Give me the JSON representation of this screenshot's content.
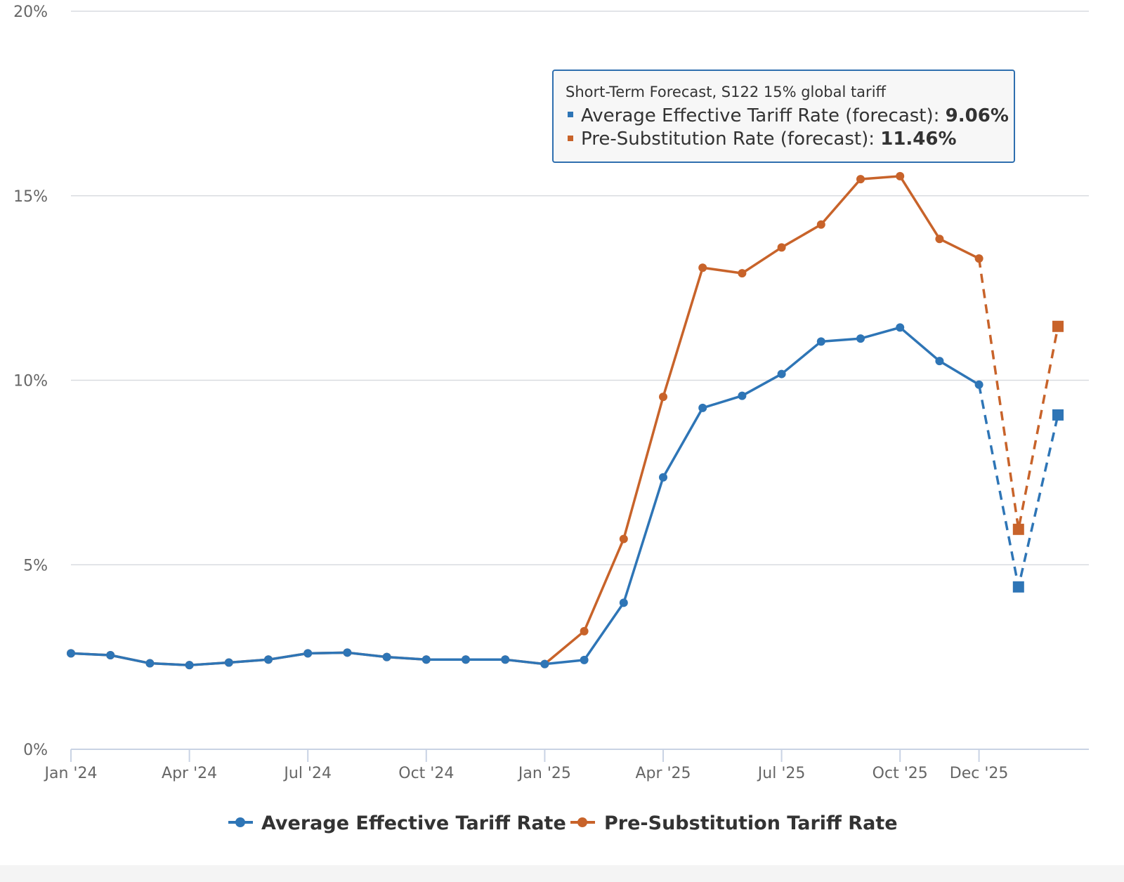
{
  "chart_data": {
    "type": "line",
    "title": "",
    "xlabel": "",
    "ylabel": "",
    "ylim": [
      0,
      20
    ],
    "y_ticks": [
      "0%",
      "5%",
      "10%",
      "15%",
      "20%"
    ],
    "y_tick_values": [
      0,
      5,
      10,
      15,
      20
    ],
    "x_start": "2024-01",
    "x_ticks": [
      {
        "month": "2024-01",
        "label": "Jan '24"
      },
      {
        "month": "2024-04",
        "label": "Apr '24"
      },
      {
        "month": "2024-07",
        "label": "Jul '24"
      },
      {
        "month": "2024-10",
        "label": "Oct '24"
      },
      {
        "month": "2025-01",
        "label": "Jan '25"
      },
      {
        "month": "2025-04",
        "label": "Apr '25"
      },
      {
        "month": "2025-07",
        "label": "Jul '25"
      },
      {
        "month": "2025-10",
        "label": "Oct '25"
      },
      {
        "month": "2025-12",
        "label": "Dec '25"
      }
    ],
    "grid": true,
    "legend_position": "bottom-center",
    "series": [
      {
        "name": "Average Effective Tariff Rate",
        "color": "#2e75b6",
        "x": [
          "2024-01",
          "2024-02",
          "2024-03",
          "2024-04",
          "2024-05",
          "2024-06",
          "2024-07",
          "2024-08",
          "2024-09",
          "2024-10",
          "2024-11",
          "2024-12",
          "2025-01",
          "2025-02",
          "2025-03",
          "2025-04",
          "2025-05",
          "2025-06",
          "2025-07",
          "2025-08",
          "2025-09",
          "2025-10",
          "2025-11",
          "2025-12"
        ],
        "values": [
          2.6,
          2.55,
          2.33,
          2.28,
          2.35,
          2.43,
          2.6,
          2.62,
          2.5,
          2.43,
          2.43,
          2.43,
          2.31,
          2.42,
          3.97,
          7.37,
          9.25,
          9.58,
          10.17,
          11.05,
          11.13,
          11.43,
          10.52,
          9.88
        ]
      },
      {
        "name": "Pre-Substitution Tariff Rate",
        "color": "#c8632a",
        "x": [
          "2024-01",
          "2024-02",
          "2024-03",
          "2024-04",
          "2024-05",
          "2024-06",
          "2024-07",
          "2024-08",
          "2024-09",
          "2024-10",
          "2024-11",
          "2024-12",
          "2025-01",
          "2025-02",
          "2025-03",
          "2025-04",
          "2025-05",
          "2025-06",
          "2025-07",
          "2025-08",
          "2025-09",
          "2025-10",
          "2025-11",
          "2025-12"
        ],
        "values": [
          2.6,
          2.55,
          2.33,
          2.28,
          2.35,
          2.43,
          2.6,
          2.62,
          2.5,
          2.43,
          2.43,
          2.43,
          2.31,
          3.2,
          5.7,
          9.55,
          13.05,
          12.9,
          13.6,
          14.22,
          15.45,
          15.53,
          13.83,
          13.3
        ]
      }
    ],
    "forecast_series": [
      {
        "name": "Average Effective Tariff Rate (forecast)",
        "color": "#2e75b6",
        "x": [
          "2025-12",
          "2026-01",
          "2026-02"
        ],
        "values": [
          9.88,
          4.4,
          9.06
        ]
      },
      {
        "name": "Pre-Substitution Rate (forecast)",
        "color": "#c8632a",
        "x": [
          "2025-12",
          "2026-01",
          "2026-02"
        ],
        "values": [
          13.3,
          5.96,
          11.46
        ]
      }
    ],
    "tooltip": {
      "header": "Short-Term Forecast, S122 15% global tariff",
      "rows": [
        {
          "label": "Average Effective Tariff Rate (forecast):",
          "value": "9.06%",
          "color": "#2e75b6"
        },
        {
          "label": "Pre-Substitution Rate (forecast):",
          "value": "11.46%",
          "color": "#c8632a"
        }
      ]
    },
    "legend": [
      {
        "label": "Average Effective Tariff Rate",
        "color": "#2e75b6"
      },
      {
        "label": "Pre-Substitution Tariff Rate",
        "color": "#c8632a"
      }
    ]
  }
}
